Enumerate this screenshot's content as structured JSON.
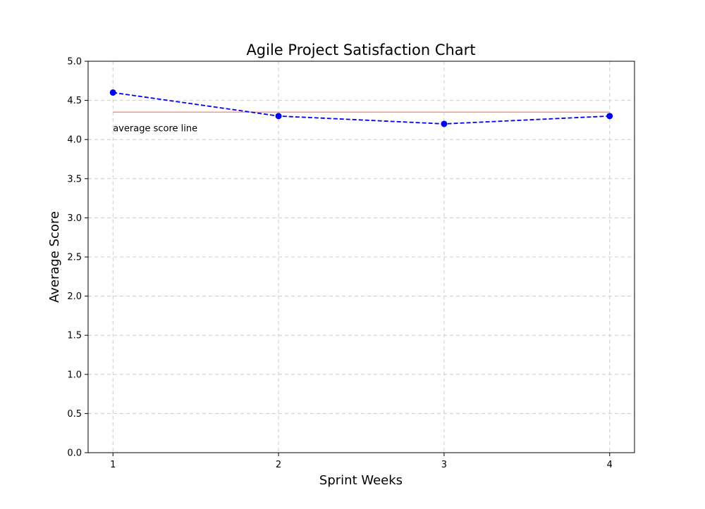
{
  "chart_data": {
    "type": "line",
    "title": "Agile Project Satisfaction Chart",
    "xlabel": "Sprint Weeks",
    "ylabel": "Average Score",
    "x": [
      1,
      2,
      3,
      4
    ],
    "xticks": [
      "1",
      "2",
      "3",
      "4"
    ],
    "yticks": [
      "0.0",
      "0.5",
      "1.0",
      "1.5",
      "2.0",
      "2.5",
      "3.0",
      "3.5",
      "4.0",
      "4.5",
      "5.0"
    ],
    "xlim": [
      0.85,
      4.15
    ],
    "ylim": [
      0,
      5
    ],
    "grid": true,
    "series": [
      {
        "values": [
          4.6,
          4.3,
          4.2,
          4.3
        ],
        "color": "#0000ff",
        "line_style": "dashed",
        "marker": "circle"
      }
    ],
    "reference_line": {
      "y": 4.35,
      "x_range": [
        1,
        4
      ],
      "color": "#fa8072"
    },
    "annotation": {
      "text": "average score line",
      "x": 1,
      "y": 4.15
    }
  }
}
